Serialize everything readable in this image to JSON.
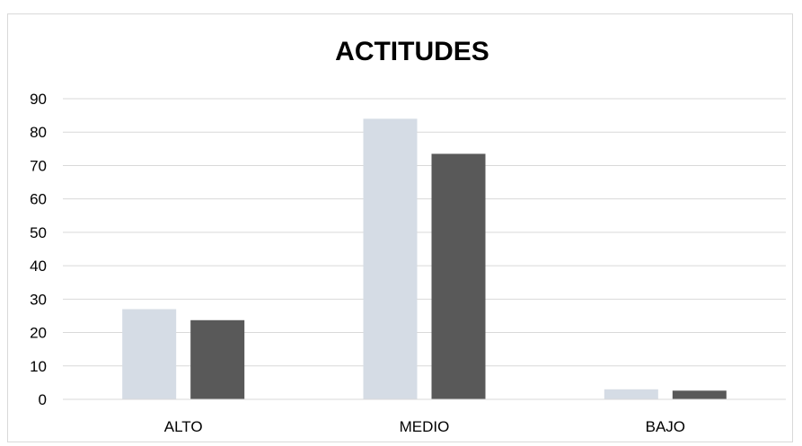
{
  "chart_data": {
    "type": "bar",
    "title": "ACTITUDES",
    "xlabel": "",
    "ylabel": "",
    "categories": [
      "ALTO",
      "MEDIO",
      "BAJO"
    ],
    "series": [
      {
        "values": [
          27,
          84,
          3
        ],
        "color": "#d5dce5"
      },
      {
        "values": [
          23.7,
          73.5,
          2.6
        ],
        "color": "#595959"
      }
    ],
    "ylim": [
      0,
      90
    ],
    "yticks": [
      0,
      10,
      20,
      30,
      40,
      50,
      60,
      70,
      80,
      90
    ],
    "grid": true,
    "legend": "none"
  }
}
